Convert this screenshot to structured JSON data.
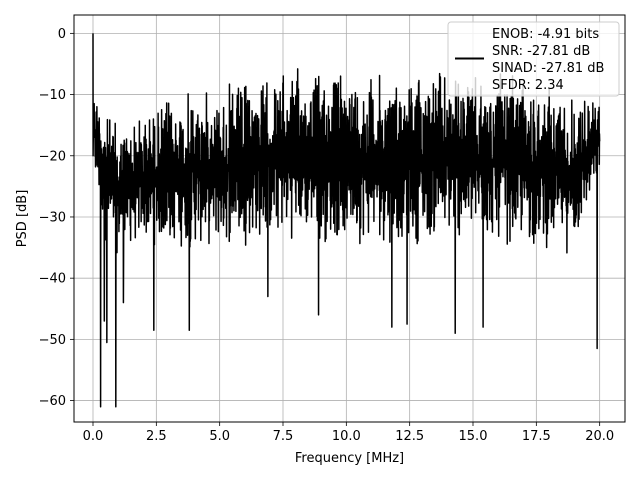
{
  "chart_data": {
    "type": "line",
    "xlabel": "Frequency [MHz]",
    "ylabel": "PSD [dB]",
    "xlim": [
      -0.75,
      21.0
    ],
    "ylim": [
      -63.5,
      3.0
    ],
    "x_ticks": [
      0.0,
      2.5,
      5.0,
      7.5,
      10.0,
      12.5,
      15.0,
      17.5,
      20.0
    ],
    "x_tick_labels": [
      "0.0",
      "2.5",
      "5.0",
      "7.5",
      "10.0",
      "12.5",
      "15.0",
      "17.5",
      "20.0"
    ],
    "y_ticks": [
      0,
      -10,
      -20,
      -30,
      -40,
      -50,
      -60
    ],
    "y_tick_labels": [
      "0",
      "−10",
      "−20",
      "−30",
      "−40",
      "−50",
      "−60"
    ],
    "grid": true,
    "legend_placement": "top-right",
    "legend": {
      "lines": [
        "ENOB: -4.91 bits",
        "SNR: -27.81 dB",
        "SINAD: -27.81 dB",
        "SFDR: 2.34"
      ]
    },
    "series": [
      {
        "color": "#000000",
        "x_range": [
          0.0,
          20.0
        ],
        "peak": {
          "x": 0.0,
          "y": 0.0
        },
        "upper_envelope": [
          [
            0.0,
            -7
          ],
          [
            0.5,
            -12
          ],
          [
            1.0,
            -14
          ],
          [
            2.0,
            -12
          ],
          [
            3.0,
            -9.5
          ],
          [
            4.0,
            -8.5
          ],
          [
            5.0,
            -8
          ],
          [
            6.0,
            -7
          ],
          [
            7.0,
            -6
          ],
          [
            8.0,
            -5
          ],
          [
            8.7,
            -4.5
          ],
          [
            9.5,
            -5
          ],
          [
            10.5,
            -5
          ],
          [
            11.5,
            -6
          ],
          [
            12.5,
            -5
          ],
          [
            13.5,
            -4.5
          ],
          [
            14.5,
            -6
          ],
          [
            15.5,
            -7
          ],
          [
            16.5,
            -6
          ],
          [
            17.5,
            -7
          ],
          [
            18.5,
            -8
          ],
          [
            19.5,
            -9
          ],
          [
            20.0,
            -10
          ]
        ],
        "lower_envelope": [
          [
            0.0,
            -24
          ],
          [
            0.5,
            -35
          ],
          [
            1.0,
            -37
          ],
          [
            2.0,
            -35
          ],
          [
            3.0,
            -36
          ],
          [
            4.0,
            -36
          ],
          [
            5.0,
            -36
          ],
          [
            6.0,
            -35
          ],
          [
            7.0,
            -35
          ],
          [
            8.0,
            -34
          ],
          [
            9.0,
            -35
          ],
          [
            10.0,
            -35
          ],
          [
            11.0,
            -35
          ],
          [
            12.0,
            -35
          ],
          [
            13.0,
            -35
          ],
          [
            14.0,
            -35
          ],
          [
            15.0,
            -35
          ],
          [
            16.0,
            -35
          ],
          [
            17.0,
            -36
          ],
          [
            18.0,
            -36
          ],
          [
            19.0,
            -37
          ],
          [
            20.0,
            -24
          ]
        ],
        "deep_nulls": [
          [
            0.3,
            -61
          ],
          [
            0.45,
            -47
          ],
          [
            0.55,
            -50.5
          ],
          [
            0.9,
            -61
          ],
          [
            1.2,
            -44
          ],
          [
            2.4,
            -48.5
          ],
          [
            3.8,
            -48.5
          ],
          [
            6.9,
            -43
          ],
          [
            8.9,
            -46
          ],
          [
            11.8,
            -48
          ],
          [
            12.4,
            -47.5
          ],
          [
            14.3,
            -49
          ],
          [
            15.4,
            -48
          ],
          [
            19.9,
            -51.5
          ]
        ]
      }
    ]
  }
}
